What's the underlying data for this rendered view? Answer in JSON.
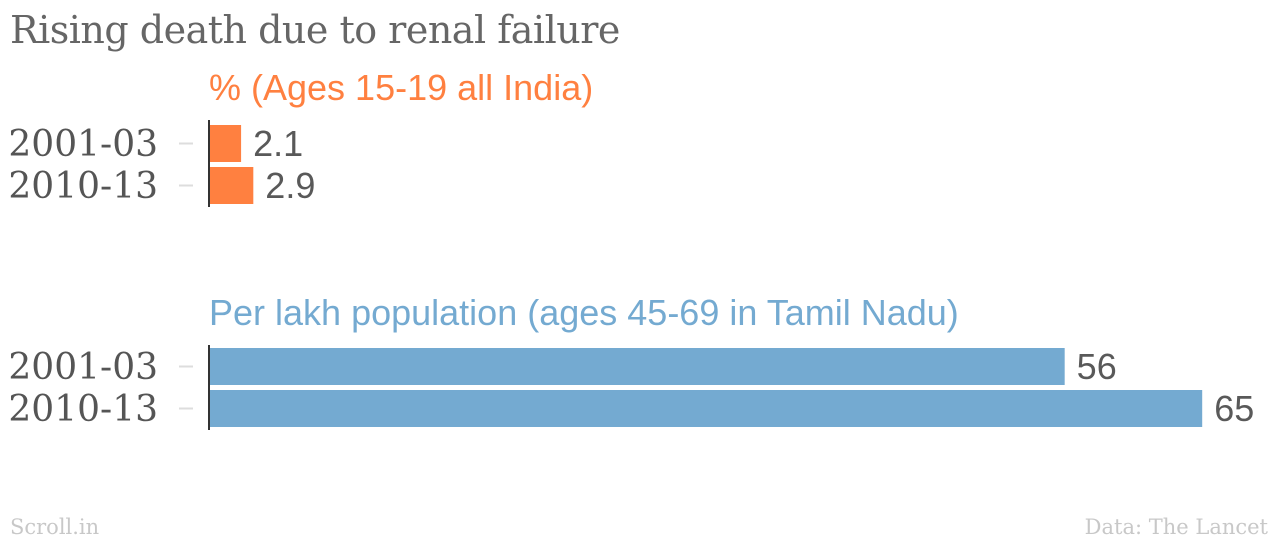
{
  "title": "Rising death due to renal failure",
  "source_left": "Scroll.in",
  "source_right": "Data: The Lancet",
  "chart_data": [
    {
      "type": "bar",
      "orientation": "horizontal",
      "title": "% (Ages 15-19 all India)",
      "categories": [
        "2001-03",
        "2010-13"
      ],
      "values": [
        2.1,
        2.9
      ],
      "value_labels": [
        "2.1",
        "2.9"
      ],
      "color": "#ff8040"
    },
    {
      "type": "bar",
      "orientation": "horizontal",
      "title": "Per lakh population (ages 45-69 in Tamil Nadu)",
      "categories": [
        "2001-03",
        "2010-13"
      ],
      "values": [
        56,
        65
      ],
      "value_labels": [
        "56",
        "65"
      ],
      "color": "#74aad1"
    }
  ]
}
